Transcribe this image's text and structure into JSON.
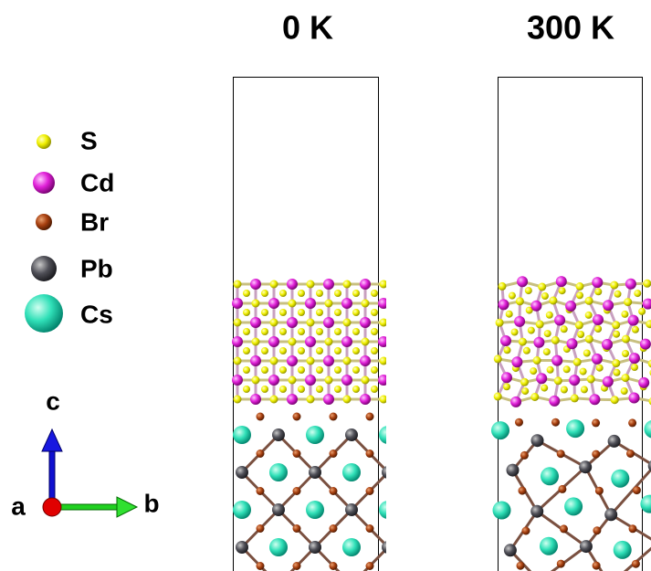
{
  "panels": [
    {
      "title": "0 K"
    },
    {
      "title": "300 K"
    }
  ],
  "legend": [
    {
      "label": "S"
    },
    {
      "label": "Cd"
    },
    {
      "label": "Br"
    },
    {
      "label": "Pb"
    },
    {
      "label": "Cs"
    }
  ],
  "axes": {
    "a": "a",
    "b": "b",
    "c": "c"
  }
}
